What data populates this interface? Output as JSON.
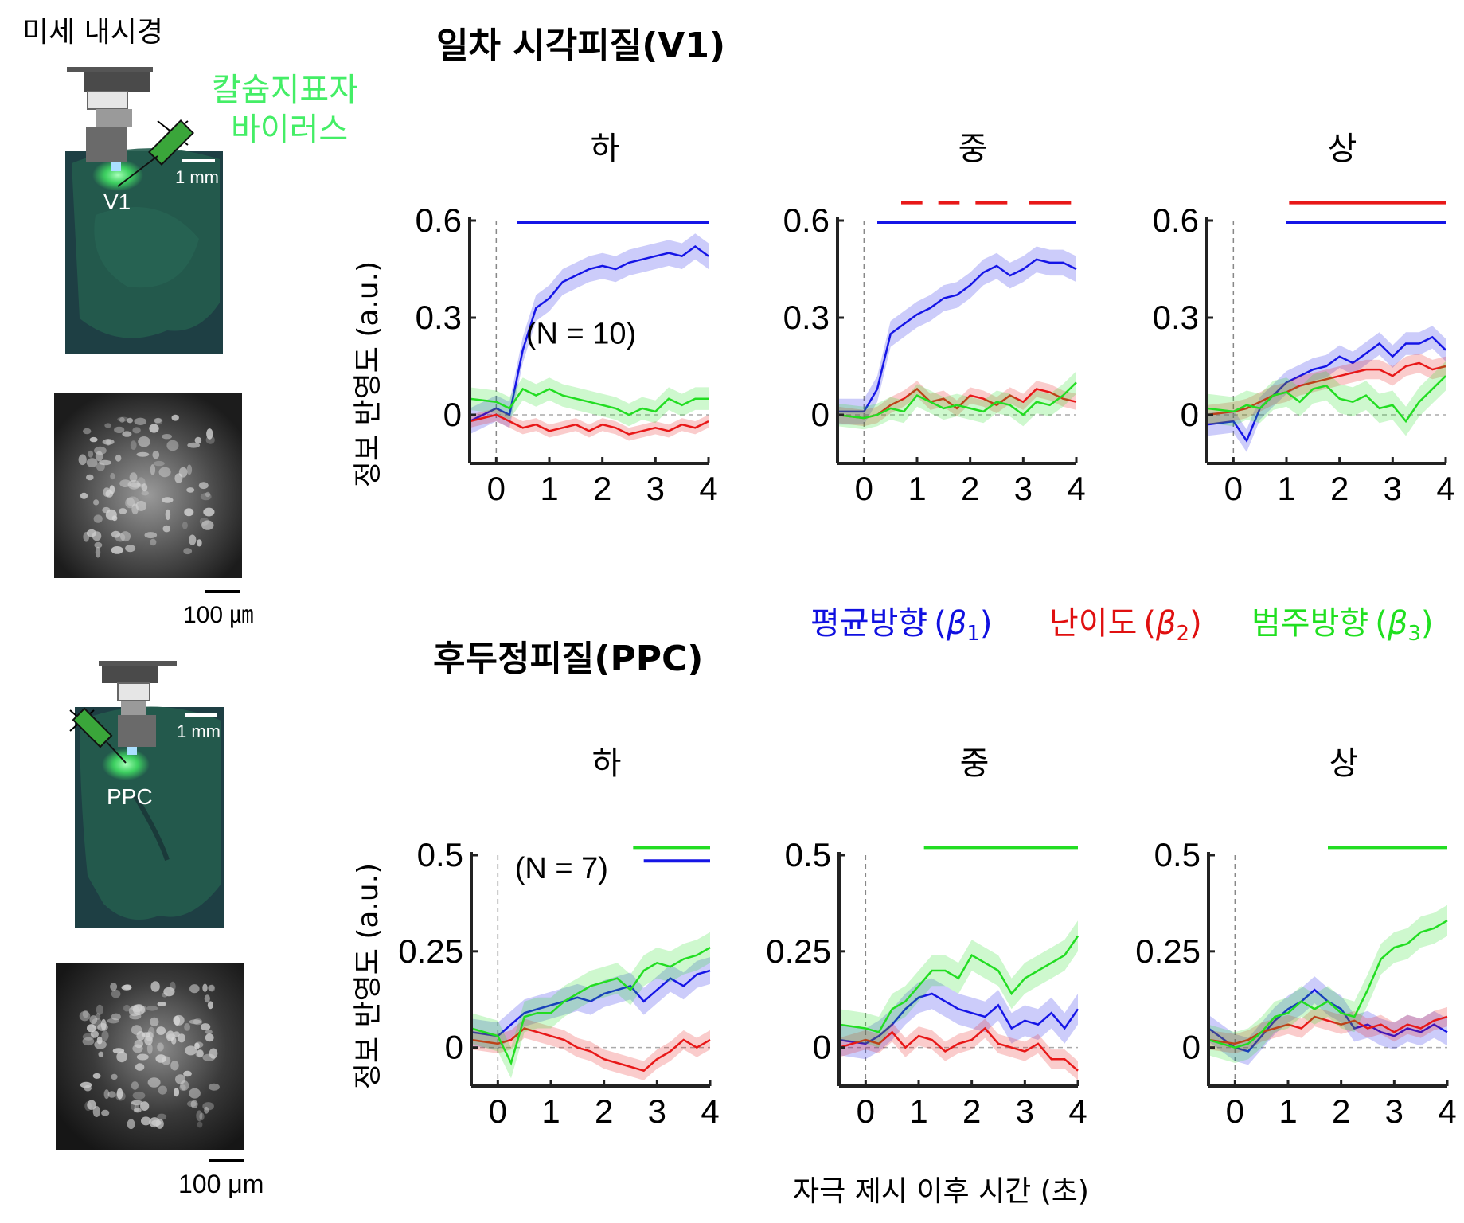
{
  "figure": {
    "microendoscope_label": "미세 내시경",
    "virus_label_line1": "칼슘지표자",
    "virus_label_line2": "바이러스",
    "v1_region_label": "V1",
    "ppc_region_label": "PPC",
    "mm_scale_label": "1 mm",
    "um_scale_label_top": "100 ㎛",
    "um_scale_label_bottom": "100 μm",
    "v1_title": "일차 시각피질(V1)",
    "ppc_title": "후두정피질(PPC)",
    "ylabel": "정보 반영도 (a.u.)",
    "xlabel": "자극 제시 이후 시간 (초)",
    "legend": [
      {
        "label": "평균방향",
        "beta": "β",
        "sub": "1",
        "color": "#1010e0"
      },
      {
        "label": "난이도",
        "beta": "β",
        "sub": "2",
        "color": "#e01010"
      },
      {
        "label": "범주방향",
        "beta": "β",
        "sub": "3",
        "color": "#20e020"
      }
    ],
    "colors": {
      "blue": "#1515e6",
      "red": "#e81818",
      "green": "#22dd22",
      "brain": "#1f5a4a",
      "virus": "#44ee66"
    }
  },
  "chart_data": [
    {
      "type": "line",
      "region": "V1",
      "title": "하",
      "annotation": "(N = 10)",
      "xlim": [
        -0.5,
        4
      ],
      "ylim": [
        -0.15,
        0.6
      ],
      "xticks": [
        0,
        1,
        2,
        3,
        4
      ],
      "yticks": [
        0,
        0.3,
        0.6
      ],
      "yticklabels": [
        "0",
        "0.3",
        "0.6"
      ],
      "x": [
        -0.5,
        0,
        0.25,
        0.5,
        0.75,
        1,
        1.25,
        1.5,
        1.75,
        2,
        2.25,
        2.5,
        2.75,
        3,
        3.25,
        3.5,
        3.75,
        4
      ],
      "series": [
        {
          "color": "blue",
          "values": [
            -0.02,
            0.02,
            0.0,
            0.2,
            0.33,
            0.36,
            0.41,
            0.43,
            0.45,
            0.46,
            0.45,
            0.47,
            0.48,
            0.49,
            0.5,
            0.49,
            0.52,
            0.49
          ],
          "err": 0.04
        },
        {
          "color": "red",
          "values": [
            -0.02,
            0.0,
            -0.02,
            -0.04,
            -0.03,
            -0.05,
            -0.04,
            -0.03,
            -0.05,
            -0.03,
            -0.04,
            -0.06,
            -0.05,
            -0.04,
            -0.05,
            -0.03,
            -0.04,
            -0.02
          ],
          "err": 0.02
        },
        {
          "color": "green",
          "values": [
            0.05,
            0.04,
            0.02,
            0.08,
            0.06,
            0.08,
            0.06,
            0.05,
            0.04,
            0.03,
            0.02,
            0.0,
            0.02,
            0.01,
            0.05,
            0.03,
            0.05,
            0.05
          ],
          "err": 0.035
        }
      ],
      "sig_bars": [
        {
          "color": "blue",
          "start": 0.4,
          "end": 4,
          "y": 0.595
        }
      ]
    },
    {
      "type": "line",
      "region": "V1",
      "title": "중",
      "xlim": [
        -0.5,
        4
      ],
      "ylim": [
        -0.15,
        0.6
      ],
      "xticks": [
        0,
        1,
        2,
        3,
        4
      ],
      "yticks": [
        0,
        0.3,
        0.6
      ],
      "yticklabels": [
        "0",
        "0.3",
        "0.6"
      ],
      "x": [
        -0.5,
        0,
        0.25,
        0.5,
        0.75,
        1,
        1.25,
        1.5,
        1.75,
        2,
        2.25,
        2.5,
        2.75,
        3,
        3.25,
        3.5,
        3.75,
        4
      ],
      "series": [
        {
          "color": "blue",
          "values": [
            0.01,
            0.01,
            0.08,
            0.25,
            0.28,
            0.31,
            0.33,
            0.36,
            0.37,
            0.4,
            0.44,
            0.46,
            0.43,
            0.45,
            0.48,
            0.47,
            0.47,
            0.45
          ],
          "err": 0.04
        },
        {
          "color": "red",
          "values": [
            0.0,
            -0.01,
            0.0,
            0.03,
            0.05,
            0.08,
            0.04,
            0.05,
            0.02,
            0.06,
            0.05,
            0.03,
            0.06,
            0.04,
            0.08,
            0.07,
            0.05,
            0.04
          ],
          "err": 0.025
        },
        {
          "color": "green",
          "values": [
            0.0,
            -0.01,
            0.0,
            0.02,
            0.01,
            0.06,
            0.04,
            0.02,
            0.03,
            0.02,
            0.01,
            0.04,
            0.03,
            0.0,
            0.04,
            0.03,
            0.06,
            0.1
          ],
          "err": 0.035
        }
      ],
      "sig_bars": [
        {
          "color": "blue",
          "start": 0.25,
          "end": 4,
          "y": 0.595
        },
        {
          "color": "red",
          "start": 0.7,
          "end": 1.1,
          "y": 0.655
        },
        {
          "color": "red",
          "start": 1.4,
          "end": 1.8,
          "y": 0.655
        },
        {
          "color": "red",
          "start": 2.1,
          "end": 2.7,
          "y": 0.655
        },
        {
          "color": "red",
          "start": 3.1,
          "end": 3.9,
          "y": 0.655
        }
      ]
    },
    {
      "type": "line",
      "region": "V1",
      "title": "상",
      "xlim": [
        -0.5,
        4
      ],
      "ylim": [
        -0.15,
        0.6
      ],
      "xticks": [
        0,
        1,
        2,
        3,
        4
      ],
      "yticks": [
        0,
        0.3,
        0.6
      ],
      "yticklabels": [
        "0",
        "0.3",
        "0.6"
      ],
      "x": [
        -0.5,
        0,
        0.25,
        0.5,
        0.75,
        1,
        1.25,
        1.5,
        1.75,
        2,
        2.25,
        2.5,
        2.75,
        3,
        3.25,
        3.5,
        3.75,
        4
      ],
      "series": [
        {
          "color": "blue",
          "values": [
            -0.03,
            -0.02,
            -0.08,
            0.02,
            0.06,
            0.1,
            0.12,
            0.14,
            0.15,
            0.18,
            0.16,
            0.19,
            0.22,
            0.18,
            0.22,
            0.22,
            0.24,
            0.2
          ],
          "err": 0.035
        },
        {
          "color": "red",
          "values": [
            0.0,
            0.01,
            0.02,
            0.04,
            0.06,
            0.07,
            0.09,
            0.1,
            0.11,
            0.12,
            0.13,
            0.14,
            0.14,
            0.12,
            0.15,
            0.16,
            0.14,
            0.15
          ],
          "err": 0.03
        },
        {
          "color": "green",
          "values": [
            0.02,
            0.01,
            0.03,
            0.02,
            0.06,
            0.07,
            0.04,
            0.08,
            0.09,
            0.05,
            0.04,
            0.06,
            0.02,
            0.03,
            -0.02,
            0.04,
            0.08,
            0.12
          ],
          "err": 0.045
        }
      ],
      "sig_bars": [
        {
          "color": "blue",
          "start": 1.0,
          "end": 4,
          "y": 0.595
        },
        {
          "color": "red",
          "start": 1.05,
          "end": 4,
          "y": 0.655
        }
      ]
    },
    {
      "type": "line",
      "region": "PPC",
      "title": "하",
      "annotation": "(N = 7)",
      "xlim": [
        -0.5,
        4
      ],
      "ylim": [
        -0.1,
        0.5
      ],
      "xticks": [
        0,
        1,
        2,
        3,
        4
      ],
      "yticks": [
        0,
        0.25,
        0.5
      ],
      "yticklabels": [
        "0",
        "0.25",
        "0.5"
      ],
      "x": [
        -0.5,
        0,
        0.25,
        0.5,
        0.75,
        1,
        1.25,
        1.5,
        1.75,
        2,
        2.25,
        2.5,
        2.75,
        3,
        3.25,
        3.5,
        3.75,
        4
      ],
      "series": [
        {
          "color": "blue",
          "values": [
            0.04,
            0.03,
            0.06,
            0.09,
            0.1,
            0.11,
            0.12,
            0.13,
            0.12,
            0.14,
            0.15,
            0.16,
            0.12,
            0.15,
            0.18,
            0.16,
            0.19,
            0.2
          ],
          "err": 0.035
        },
        {
          "color": "red",
          "values": [
            0.02,
            0.01,
            0.02,
            0.05,
            0.04,
            0.03,
            0.02,
            0.0,
            -0.01,
            -0.03,
            -0.04,
            -0.05,
            -0.06,
            -0.03,
            -0.01,
            0.02,
            0.0,
            0.02
          ],
          "err": 0.025
        },
        {
          "color": "green",
          "values": [
            0.05,
            0.03,
            -0.04,
            0.08,
            0.09,
            0.09,
            0.12,
            0.14,
            0.16,
            0.17,
            0.18,
            0.15,
            0.2,
            0.22,
            0.21,
            0.23,
            0.24,
            0.26
          ],
          "err": 0.04
        }
      ],
      "sig_bars": [
        {
          "color": "green",
          "start": 2.55,
          "end": 4,
          "y": 0.52
        },
        {
          "color": "blue",
          "start": 2.75,
          "end": 4,
          "y": 0.485
        }
      ]
    },
    {
      "type": "line",
      "region": "PPC",
      "title": "중",
      "xlim": [
        -0.5,
        4
      ],
      "ylim": [
        -0.1,
        0.5
      ],
      "xticks": [
        0,
        1,
        2,
        3,
        4
      ],
      "yticks": [
        0,
        0.25,
        0.5
      ],
      "yticklabels": [
        "0",
        "0.25",
        "0.5"
      ],
      "x": [
        -0.5,
        0,
        0.25,
        0.5,
        0.75,
        1,
        1.25,
        1.5,
        1.75,
        2,
        2.25,
        2.5,
        2.75,
        3,
        3.25,
        3.5,
        3.75,
        4
      ],
      "series": [
        {
          "color": "blue",
          "values": [
            0.02,
            0.01,
            0.03,
            0.06,
            0.1,
            0.13,
            0.14,
            0.12,
            0.1,
            0.09,
            0.08,
            0.11,
            0.05,
            0.07,
            0.06,
            0.09,
            0.05,
            0.1
          ],
          "err": 0.04
        },
        {
          "color": "red",
          "values": [
            0.0,
            0.02,
            0.01,
            0.04,
            0.0,
            0.03,
            0.02,
            -0.01,
            0.01,
            0.02,
            0.05,
            0.01,
            0.0,
            -0.01,
            0.01,
            -0.03,
            -0.03,
            -0.06
          ],
          "err": 0.025
        },
        {
          "color": "green",
          "values": [
            0.06,
            0.05,
            0.04,
            0.1,
            0.12,
            0.16,
            0.2,
            0.2,
            0.18,
            0.24,
            0.22,
            0.2,
            0.14,
            0.18,
            0.2,
            0.22,
            0.24,
            0.29
          ],
          "err": 0.04
        }
      ],
      "sig_bars": [
        {
          "color": "green",
          "start": 1.1,
          "end": 4,
          "y": 0.52
        }
      ]
    },
    {
      "type": "line",
      "region": "PPC",
      "title": "상",
      "xlim": [
        -0.5,
        4
      ],
      "ylim": [
        -0.1,
        0.5
      ],
      "xticks": [
        0,
        1,
        2,
        3,
        4
      ],
      "yticks": [
        0,
        0.25,
        0.5
      ],
      "yticklabels": [
        "0",
        "0.25",
        "0.5"
      ],
      "x": [
        -0.5,
        0,
        0.25,
        0.5,
        0.75,
        1,
        1.25,
        1.5,
        1.75,
        2,
        2.25,
        2.5,
        2.75,
        3,
        3.25,
        3.5,
        3.75,
        4
      ],
      "series": [
        {
          "color": "blue",
          "values": [
            0.05,
            0.0,
            -0.01,
            0.03,
            0.07,
            0.1,
            0.12,
            0.15,
            0.12,
            0.1,
            0.05,
            0.06,
            0.04,
            0.03,
            0.05,
            0.04,
            0.06,
            0.04
          ],
          "err": 0.035
        },
        {
          "color": "red",
          "values": [
            0.02,
            0.01,
            0.02,
            0.04,
            0.05,
            0.06,
            0.05,
            0.08,
            0.07,
            0.06,
            0.07,
            0.05,
            0.06,
            0.04,
            0.06,
            0.05,
            0.07,
            0.08
          ],
          "err": 0.025
        },
        {
          "color": "green",
          "values": [
            0.02,
            0.0,
            0.01,
            0.04,
            0.08,
            0.09,
            0.12,
            0.1,
            0.12,
            0.09,
            0.08,
            0.15,
            0.23,
            0.26,
            0.27,
            0.3,
            0.31,
            0.33
          ],
          "err": 0.04
        }
      ],
      "sig_bars": [
        {
          "color": "green",
          "start": 1.75,
          "end": 4,
          "y": 0.52
        }
      ]
    }
  ]
}
